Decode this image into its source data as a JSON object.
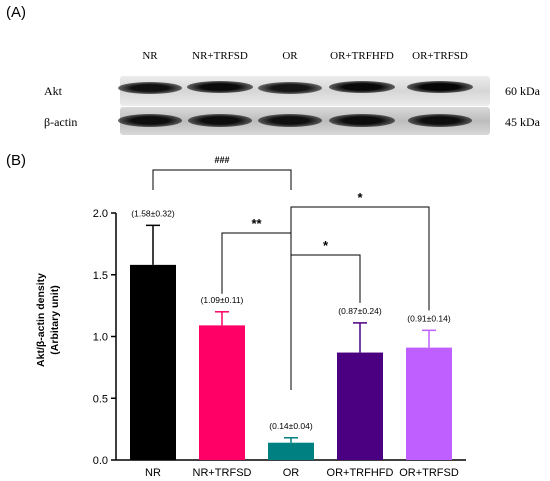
{
  "figure": {
    "panel_a_label": "(A)",
    "panel_b_label": "(B)"
  },
  "blot": {
    "lanes": [
      "NR",
      "NR+TRFSD",
      "OR",
      "OR+TRFHFD",
      "OR+TRFSD"
    ],
    "rows": [
      {
        "label": "Akt",
        "kda": "60 kDa",
        "intensity": [
          0.78,
          0.9,
          0.7,
          0.92,
          0.98
        ]
      },
      {
        "label": "β-actin",
        "kda": "45 kDa",
        "intensity": [
          0.85,
          0.85,
          0.82,
          0.88,
          0.86
        ]
      }
    ]
  },
  "chart_data": {
    "type": "bar",
    "title": "",
    "xlabel": "",
    "ylabel": "Akt/β-actin density",
    "ylabel_sub": "(Arbitary unit)",
    "ylim": [
      0,
      2.0
    ],
    "yticks": [
      "0.0",
      "0.5",
      "1.0",
      "1.5",
      "2.0"
    ],
    "categories": [
      "NR",
      "NR+TRFSD",
      "OR",
      "OR+TRFHFD",
      "OR+TRFSD"
    ],
    "values": [
      1.58,
      1.09,
      0.14,
      0.87,
      0.91
    ],
    "errors": [
      0.32,
      0.11,
      0.04,
      0.24,
      0.14
    ],
    "data_labels": [
      "(1.58±0.32)",
      "(1.09±0.11)",
      "(0.14±0.04)",
      "(0.87±0.24)",
      "(0.91±0.14)"
    ],
    "colors": [
      "#000000",
      "#ff0066",
      "#008080",
      "#4b0082",
      "#bf5fff"
    ],
    "significance": [
      {
        "from": 0,
        "to": 2,
        "label": "###"
      },
      {
        "from": 1,
        "to": 2,
        "label": "**"
      },
      {
        "from": 2,
        "to": 3,
        "label": "*"
      },
      {
        "from": 2,
        "to": 4,
        "label": "*"
      }
    ]
  }
}
